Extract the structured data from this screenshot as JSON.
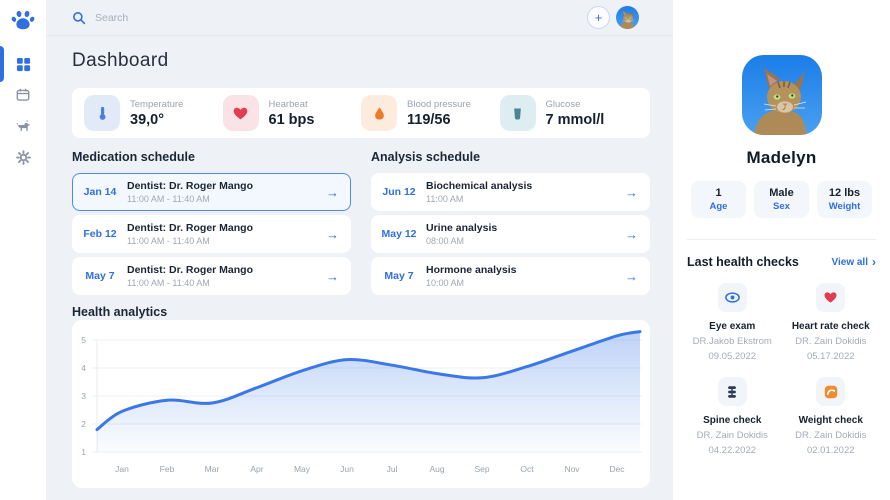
{
  "colors": {
    "accent_blue": "#2f6fe0",
    "heart_red": "#e23c52",
    "pressure_orange": "#ee7a2a",
    "glucose_teal": "#4b8591",
    "weight_orange": "#f08c2e",
    "spine_navy": "#2b3a55",
    "chart_line": "#3a78e7",
    "background": "#eef1f5"
  },
  "sidebar": {
    "logo_icon": "paw-icon",
    "items": [
      {
        "name": "dashboard",
        "icon": "dashboard-grid-icon",
        "active": true
      },
      {
        "name": "calendar",
        "icon": "calendar-icon",
        "active": false
      },
      {
        "name": "pets",
        "icon": "dog-icon",
        "active": false
      },
      {
        "name": "settings",
        "icon": "gear-icon",
        "active": false
      }
    ]
  },
  "header": {
    "search_placeholder": "Search",
    "search_icon": "magnifier-icon",
    "add_button_icon": "plus-icon",
    "avatar": "cat-avatar"
  },
  "page_title": "Dashboard",
  "vitals": [
    {
      "label": "Temperature",
      "value": "39,0°",
      "icon": "thermometer-icon"
    },
    {
      "label": "Hearbeat",
      "value": "61 bps",
      "icon": "heart-icon"
    },
    {
      "label": "Blood pressure",
      "value": "119/56",
      "icon": "drop-icon"
    },
    {
      "label": "Glucose",
      "value": "7 mmol/l",
      "icon": "beaker-icon"
    }
  ],
  "medication_schedule": {
    "title": "Medication schedule",
    "items": [
      {
        "date": "Jan 14",
        "title": "Dentist: Dr. Roger Mango",
        "time": "11:00 AM - 11:40 AM",
        "selected": true
      },
      {
        "date": "Feb 12",
        "title": "Dentist: Dr. Roger Mango",
        "time": "11:00 AM - 11:40 AM",
        "selected": false
      },
      {
        "date": "May 7",
        "title": "Dentist: Dr. Roger Mango",
        "time": "11:00 AM - 11:40 AM",
        "selected": false
      }
    ]
  },
  "analysis_schedule": {
    "title": "Analysis schedule",
    "items": [
      {
        "date": "Jun 12",
        "title": "Biochemical analysis",
        "time": "11:00 AM"
      },
      {
        "date": "May 12",
        "title": "Urine analysis",
        "time": "08:00 AM"
      },
      {
        "date": "May 7",
        "title": "Hormone analysis",
        "time": "10:00 AM"
      }
    ]
  },
  "chart_data": {
    "type": "area",
    "title": "Health analytics",
    "x": [
      "Jan",
      "Feb",
      "Mar",
      "Apr",
      "May",
      "Jun",
      "Jul",
      "Aug",
      "Sep",
      "Oct",
      "Nov",
      "Dec"
    ],
    "values": [
      2.45,
      2.85,
      2.75,
      3.3,
      3.9,
      4.3,
      4.1,
      3.8,
      3.65,
      4.05,
      4.6,
      5.15
    ],
    "lead_value": 1.8,
    "tail_value": 5.3,
    "ylim": [
      1,
      5
    ],
    "y_ticks": [
      1,
      2,
      3,
      4,
      5
    ],
    "grid": true,
    "legend": "none",
    "line_color": "#3a78e7"
  },
  "pet_profile": {
    "name": "Madelyn",
    "photo": "cat-photo",
    "stats": [
      {
        "value": "1",
        "label": "Age"
      },
      {
        "value": "Male",
        "label": "Sex"
      },
      {
        "value": "12 lbs",
        "label": "Weight"
      }
    ]
  },
  "health_checks": {
    "title": "Last health checks",
    "view_all": "View all",
    "items": [
      {
        "title": "Eye exam",
        "doctor": "DR.Jakob Ekstrom",
        "date": "09.05.2022",
        "icon": "eye-icon"
      },
      {
        "title": "Heart rate check",
        "doctor": "DR. Zain Dokidis",
        "date": "05.17.2022",
        "icon": "heart-icon"
      },
      {
        "title": "Spine check",
        "doctor": "DR. Zain Dokidis",
        "date": "04.22.2022",
        "icon": "spine-icon"
      },
      {
        "title": "Weight check",
        "doctor": "DR. Zain Dokidis",
        "date": "02.01.2022",
        "icon": "scale-icon"
      }
    ]
  }
}
